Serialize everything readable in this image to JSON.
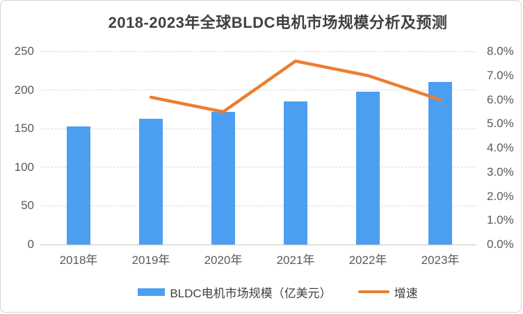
{
  "chart_data": {
    "type": "bar",
    "combo": "bar+line",
    "title": "2018-2023年全球BLDC电机市场规模分析及预测",
    "categories": [
      "2018年",
      "2019年",
      "2020年",
      "2021年",
      "2022年",
      "2023年"
    ],
    "series": [
      {
        "name": "BLDC电机市场规模（亿美元）",
        "type": "bar",
        "axis": "left",
        "values": [
          153,
          163,
          172,
          185,
          198,
          210
        ],
        "color": "#4C9FF0"
      },
      {
        "name": "增速",
        "type": "line",
        "axis": "right",
        "unit": "%",
        "values": [
          null,
          6.1,
          5.5,
          7.6,
          7.0,
          6.0
        ],
        "color": "#ED7D31"
      }
    ],
    "axes": {
      "left": {
        "min": 0,
        "max": 250,
        "step": 50,
        "ticks": [
          "0",
          "50",
          "100",
          "150",
          "200",
          "250"
        ]
      },
      "right": {
        "min": 0,
        "max": 8,
        "step": 1,
        "ticks": [
          "0.0%",
          "1.0%",
          "2.0%",
          "3.0%",
          "4.0%",
          "5.0%",
          "6.0%",
          "7.0%",
          "8.0%"
        ]
      }
    },
    "grid": true,
    "legend_position": "bottom"
  },
  "style": {
    "title_color": "#404040",
    "tick_color": "#595959",
    "gridline_color": "#d9d9d9",
    "border_color": "#d4d4d4",
    "background": "#ffffff"
  }
}
